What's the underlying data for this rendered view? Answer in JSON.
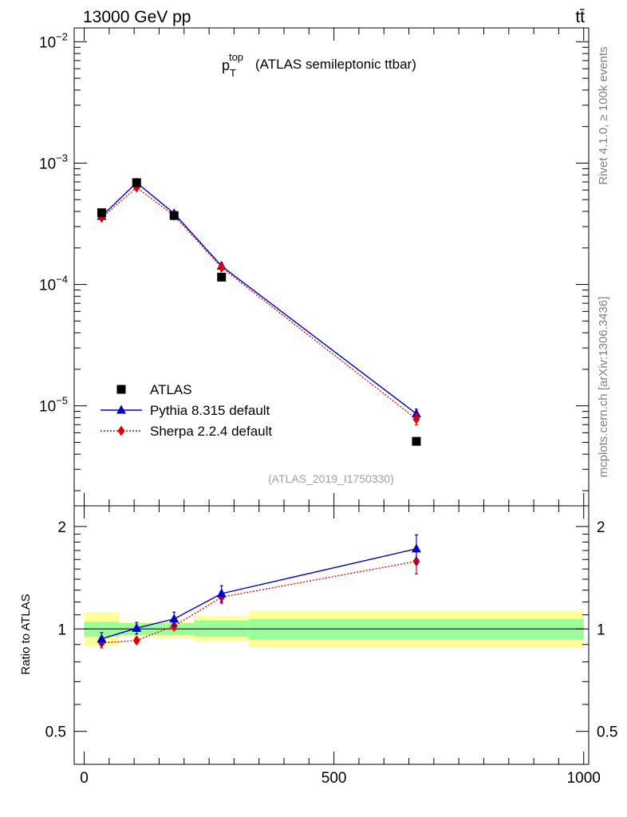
{
  "header": {
    "energy_label": "13000 GeV pp",
    "process_label": "tt̄"
  },
  "side_labels": {
    "rivet": "Rivet 4.1.0, ≥ 100k events",
    "mcplots": "mcplots.cern.ch [arXiv:1306.3436]"
  },
  "chart_data": [
    {
      "panel": "main",
      "type": "scatter",
      "title": {
        "p": "p",
        "sub": "T",
        "sup": "top",
        "rest": "(ATLAS semileptonic ttbar)"
      },
      "analysis_id": "(ATLAS_2019_I1750330)",
      "yscale": "log",
      "ylim": [
        1.5e-06,
        0.013
      ],
      "y_ticks": [
        {
          "value": 1e-05,
          "base": "10",
          "exp": "−5"
        },
        {
          "value": 0.0001,
          "base": "10",
          "exp": "−4"
        },
        {
          "value": 0.001,
          "base": "10",
          "exp": "−3"
        },
        {
          "value": 0.01,
          "base": "10",
          "exp": "−2"
        }
      ],
      "xlim": [
        -20,
        1010
      ],
      "legend_position": "bottom-left",
      "series": [
        {
          "name": "ATLAS",
          "color": "#000000",
          "marker": "square",
          "x": [
            35,
            105,
            180,
            275,
            665
          ],
          "y": [
            0.00039,
            0.00069,
            0.00037,
            0.000115,
            5.1e-06
          ]
        },
        {
          "name": "Pythia 8.315 default",
          "color": "#0000cc",
          "marker": "triangle",
          "line": "solid",
          "x": [
            35,
            105,
            180,
            275,
            665
          ],
          "y": [
            0.000365,
            0.00069,
            0.000385,
            0.000142,
            8.6e-06
          ],
          "err": [
            1.5e-05,
            2e-05,
            1.5e-05,
            8e-06,
            8e-07
          ]
        },
        {
          "name": "Sherpa 2.2.4 default",
          "color": "#e00000",
          "marker": "diamond",
          "line": "dotted",
          "x": [
            35,
            105,
            180,
            275,
            665
          ],
          "y": [
            0.000355,
            0.00063,
            0.00037,
            0.000138,
            7.8e-06
          ],
          "err": [
            1.5e-05,
            2e-05,
            1.5e-05,
            8e-06,
            8e-07
          ]
        }
      ]
    },
    {
      "panel": "ratio",
      "type": "scatter",
      "ylabel": "Ratio to ATLAS",
      "ylim": [
        0.4,
        2.3
      ],
      "y_ticks": [
        0.5,
        1,
        2
      ],
      "y_tick_labels": [
        "0.5",
        "1",
        "2"
      ],
      "xlim": [
        -20,
        1010
      ],
      "x_ticks": [
        0,
        500,
        1000
      ],
      "x_tick_labels": [
        "0",
        "500",
        "1000"
      ],
      "reference_line": 1,
      "bands": [
        {
          "x": [
            0,
            70
          ],
          "inner": [
            0.95,
            1.05
          ],
          "outer": [
            0.89,
            1.12
          ]
        },
        {
          "x": [
            70,
            140
          ],
          "inner": [
            0.96,
            1.04
          ],
          "outer": [
            0.95,
            1.05
          ]
        },
        {
          "x": [
            140,
            220
          ],
          "inner": [
            0.96,
            1.04
          ],
          "outer": [
            0.94,
            1.05
          ]
        },
        {
          "x": [
            220,
            330
          ],
          "inner": [
            0.95,
            1.06
          ],
          "outer": [
            0.92,
            1.09
          ]
        },
        {
          "x": [
            330,
            1000
          ],
          "inner": [
            0.93,
            1.07
          ],
          "outer": [
            0.88,
            1.13
          ]
        }
      ],
      "series": [
        {
          "name": "Pythia 8.315 default",
          "color": "#0000cc",
          "marker": "triangle",
          "line": "solid",
          "x": [
            35,
            105,
            180,
            275,
            665
          ],
          "y": [
            0.935,
            1.005,
            1.07,
            1.27,
            1.72
          ],
          "err": [
            0.04,
            0.04,
            0.05,
            0.07,
            0.17
          ]
        },
        {
          "name": "Sherpa 2.2.4 default",
          "color": "#e00000",
          "marker": "diamond",
          "line": "dotted",
          "x": [
            35,
            105,
            180,
            275,
            665
          ],
          "y": [
            0.91,
            0.925,
            1.02,
            1.24,
            1.58
          ],
          "err": [
            0.03,
            0.02,
            0.03,
            0.05,
            0.13
          ]
        }
      ]
    }
  ]
}
